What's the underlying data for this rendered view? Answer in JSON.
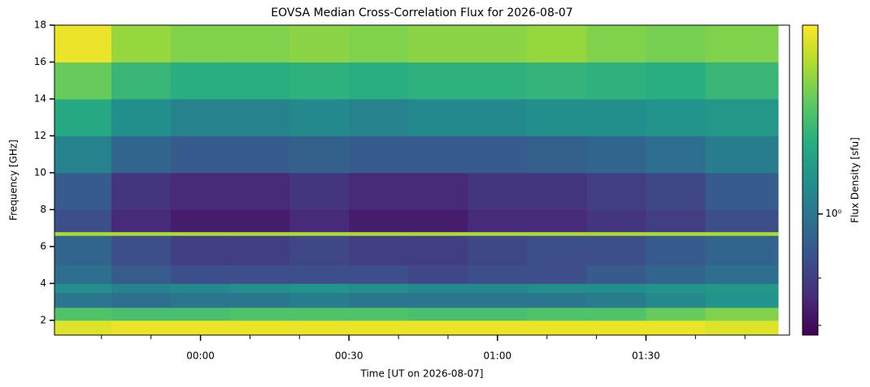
{
  "chart_data": {
    "type": "heatmap",
    "title": "EOVSA Median Cross-Correlation Flux for 2026-08-07",
    "xlabel": "Time [UT on 2026-08-07]",
    "ylabel": "Frequency [GHz]",
    "colorbar_label": "Flux Density [sfu]",
    "xlim": [
      -29.5,
      119
    ],
    "xticks": [
      {
        "value": 0,
        "label": "00:00"
      },
      {
        "value": 30,
        "label": "00:30"
      },
      {
        "value": 60,
        "label": "01:00"
      },
      {
        "value": 90,
        "label": "01:30"
      }
    ],
    "xminorticks": [
      -20,
      -10,
      10,
      20,
      40,
      50,
      70,
      80,
      100,
      110
    ],
    "ylim": [
      1.2,
      18
    ],
    "yticks": [
      2,
      4,
      6,
      8,
      10,
      12,
      14,
      16,
      18
    ],
    "x_edges": [
      -29.5,
      -18,
      -6,
      6,
      18,
      30,
      42,
      54,
      66,
      78,
      90,
      102,
      116.7
    ],
    "y_edges": [
      1.2,
      2,
      2.7,
      3.5,
      4,
      5,
      6.6,
      6.8,
      8,
      10,
      12,
      14,
      16,
      18
    ],
    "z": [
      [
        6.5,
        7,
        7,
        7,
        7,
        7,
        7,
        7,
        7,
        7,
        7,
        6.5
      ],
      [
        3,
        2.8,
        2.8,
        3,
        3,
        3,
        2.8,
        2.8,
        3,
        3,
        3.5,
        4
      ],
      [
        1,
        0.9,
        1,
        1,
        1.1,
        1,
        1,
        1,
        1,
        1.1,
        1.3,
        1.5
      ],
      [
        1.4,
        1.2,
        1.3,
        1.4,
        1.5,
        1.4,
        1.3,
        1.3,
        1.4,
        1.4,
        1.5,
        1.6
      ],
      [
        0.9,
        0.7,
        0.6,
        0.6,
        0.6,
        0.6,
        0.55,
        0.6,
        0.6,
        0.7,
        0.8,
        0.9
      ],
      [
        0.8,
        0.6,
        0.5,
        0.5,
        0.55,
        0.5,
        0.5,
        0.55,
        0.6,
        0.6,
        0.7,
        0.8
      ],
      [
        5,
        5,
        5,
        5,
        5,
        5,
        5,
        5,
        5,
        5,
        5,
        5
      ],
      [
        0.6,
        0.4,
        0.35,
        0.35,
        0.4,
        0.35,
        0.35,
        0.4,
        0.4,
        0.45,
        0.5,
        0.6
      ],
      [
        0.7,
        0.45,
        0.4,
        0.4,
        0.45,
        0.4,
        0.4,
        0.45,
        0.45,
        0.5,
        0.55,
        0.7
      ],
      [
        1.2,
        0.8,
        0.7,
        0.7,
        0.75,
        0.7,
        0.7,
        0.7,
        0.75,
        0.8,
        0.9,
        1.1
      ],
      [
        2,
        1.4,
        1.2,
        1.2,
        1.3,
        1.2,
        1.3,
        1.3,
        1.4,
        1.4,
        1.5,
        1.6
      ],
      [
        3.5,
        2.5,
        2.2,
        2.2,
        2.3,
        2.2,
        2.3,
        2.3,
        2.4,
        2.3,
        2.2,
        2.5
      ],
      [
        7,
        4.5,
        4,
        4,
        4.2,
        4,
        4.2,
        4.2,
        4.5,
        4,
        3.8,
        4
      ]
    ],
    "zlim": [
      0.27,
      7.7
    ],
    "zscale": "log",
    "cticks": [
      {
        "value": 1,
        "label": "10⁰"
      }
    ],
    "cminorticks": [
      0.3,
      0.5
    ],
    "colormap": [
      "#440154",
      "#472d7b",
      "#3b528b",
      "#2c728e",
      "#21918c",
      "#28ae80",
      "#5ec962",
      "#addc30",
      "#fde725"
    ]
  }
}
